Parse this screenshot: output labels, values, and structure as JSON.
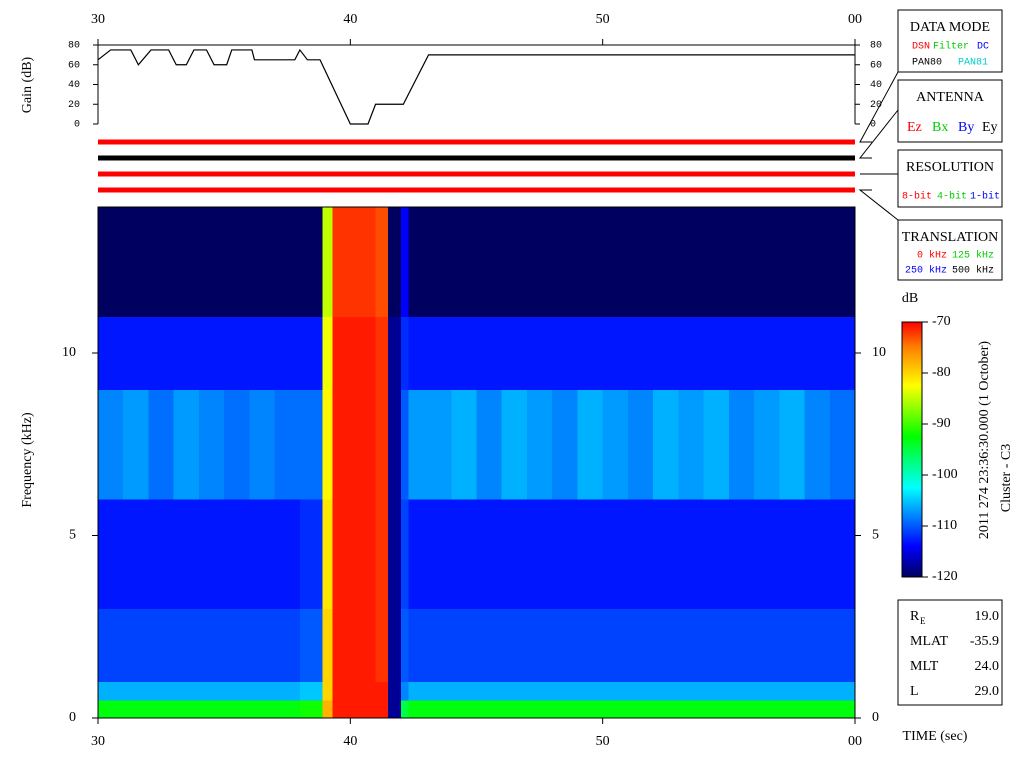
{
  "chart_data": [
    {
      "type": "line",
      "ylabel": "Gain (dB)",
      "x": [
        30,
        30.5,
        31.3,
        31.6,
        32.1,
        32.8,
        33.1,
        33.5,
        33.8,
        34.3,
        34.6,
        35.1,
        35.3,
        36.1,
        36.2,
        37.8,
        38.0,
        38.3,
        38.8,
        40.0,
        40.7,
        41.0,
        42.1,
        43.1,
        60
      ],
      "values": [
        65,
        75,
        75,
        60,
        75,
        75,
        60,
        60,
        75,
        75,
        60,
        60,
        75,
        75,
        65,
        65,
        75,
        65,
        65,
        0,
        0,
        20,
        20,
        70,
        70
      ],
      "color": "#000000",
      "xlim": [
        30,
        60
      ],
      "xticks": [
        30,
        40,
        50,
        {
          "value": 60,
          "label": "00"
        }
      ],
      "ylim": [
        0,
        80
      ],
      "yticks": [
        0,
        20,
        40,
        60,
        80
      ]
    },
    {
      "type": "heatmap",
      "ylabel": "Frequency (kHz)",
      "xlabel": "TIME (sec)",
      "x": [
        30,
        31,
        32,
        33,
        34,
        35,
        36,
        37,
        38,
        38.9,
        39.3,
        40,
        41,
        41.5,
        42,
        42.3,
        43,
        44,
        45,
        46,
        47,
        48,
        49,
        50,
        51,
        52,
        53,
        54,
        55,
        56,
        57,
        58,
        59,
        60
      ],
      "y": [
        0,
        0.5,
        1,
        3,
        6,
        9,
        11,
        14
      ],
      "z": [
        [
          -93,
          -93,
          -93,
          -93,
          -93,
          -93,
          -93,
          -93,
          -92,
          -78,
          -71,
          -71,
          -71,
          -118,
          -95,
          -93,
          -93,
          -93,
          -93,
          -93,
          -93,
          -93,
          -93,
          -93,
          -93,
          -93,
          -93,
          -93,
          -93,
          -93,
          -93,
          -93,
          -93
        ],
        [
          -106,
          -106,
          -106,
          -106,
          -106,
          -106,
          -106,
          -106,
          -105,
          -80,
          -71,
          -71,
          -71,
          -118,
          -108,
          -106,
          -106,
          -106,
          -106,
          -106,
          -106,
          -106,
          -106,
          -106,
          -106,
          -106,
          -106,
          -106,
          -106,
          -106,
          -106,
          -106,
          -106
        ],
        [
          -111,
          -111,
          -111,
          -111,
          -111,
          -111,
          -111,
          -111,
          -110,
          -80,
          -71,
          -71,
          -72,
          -118,
          -110,
          -111,
          -111,
          -111,
          -111,
          -111,
          -111,
          -111,
          -111,
          -111,
          -111,
          -111,
          -111,
          -111,
          -111,
          -111,
          -111,
          -111,
          -111
        ],
        [
          -113,
          -113,
          -113,
          -113,
          -113,
          -113,
          -113,
          -113,
          -112,
          -81,
          -71,
          -71,
          -72,
          -118,
          -111,
          -113,
          -113,
          -113,
          -113,
          -113,
          -113,
          -113,
          -113,
          -113,
          -113,
          -113,
          -113,
          -113,
          -113,
          -113,
          -113,
          -113,
          -113
        ],
        [
          -108,
          -107,
          -109,
          -107,
          -108,
          -109,
          -108,
          -109,
          -109,
          -82,
          -71,
          -71,
          -72,
          -118,
          -110,
          -107,
          -107,
          -106,
          -108,
          -106,
          -107,
          -108,
          -106,
          -107,
          -108,
          -106,
          -107,
          -106,
          -108,
          -107,
          -106,
          -108,
          -109
        ],
        [
          -113,
          -113,
          -113,
          -113,
          -113,
          -113,
          -113,
          -113,
          -113,
          -83,
          -71,
          -71,
          -72,
          -118,
          -112,
          -113,
          -113,
          -113,
          -113,
          -113,
          -113,
          -113,
          -113,
          -113,
          -113,
          -113,
          -113,
          -113,
          -113,
          -113,
          -113,
          -113,
          -113
        ],
        [
          -120,
          -120,
          -120,
          -120,
          -120,
          -120,
          -120,
          -120,
          -120,
          -85,
          -72,
          -72,
          -73,
          -120,
          -114,
          -120,
          -120,
          -120,
          -120,
          -120,
          -120,
          -120,
          -120,
          -120,
          -120,
          -120,
          -120,
          -120,
          -120,
          -120,
          -120,
          -120,
          -120
        ]
      ],
      "xlim": [
        30,
        60
      ],
      "xticks": [
        30,
        40,
        50,
        {
          "value": 60,
          "label": "00"
        }
      ],
      "ylim": [
        0,
        14
      ],
      "yticks": [
        0,
        5,
        10
      ],
      "colorbar": {
        "label": "dB",
        "lim": [
          -120,
          -70
        ],
        "ticks": [
          -70,
          -80,
          -90,
          -100,
          -110,
          -120
        ]
      }
    }
  ],
  "status_lines": [
    "#ff0000",
    "#000000",
    "#ff0000",
    "#ff0000"
  ],
  "panels": [
    {
      "title": "DATA MODE",
      "options": [
        {
          "text": "DSN",
          "color": "#ff0000"
        },
        {
          "text": "Filter",
          "color": "#00cc00"
        },
        {
          "text": "DC",
          "color": "#0000ff"
        },
        {
          "text": "PAN80",
          "color": "#000000"
        },
        {
          "text": "PAN81",
          "color": "#00cccc"
        }
      ]
    },
    {
      "title": "ANTENNA",
      "options": [
        {
          "text": "Ez",
          "color": "#ff0000"
        },
        {
          "text": "Bx",
          "color": "#00cc00"
        },
        {
          "text": "By",
          "color": "#0000ff"
        },
        {
          "text": "Ey",
          "color": "#000000"
        }
      ]
    },
    {
      "title": "RESOLUTION",
      "options": [
        {
          "text": "8-bit",
          "color": "#ff0000"
        },
        {
          "text": "4-bit",
          "color": "#00cc00"
        },
        {
          "text": "1-bit",
          "color": "#0000ff"
        }
      ]
    },
    {
      "title": "TRANSLATION",
      "options": [
        {
          "text": "0 kHz",
          "color": "#ff0000"
        },
        {
          "text": "125 kHz",
          "color": "#00cc00"
        },
        {
          "text": "250 kHz",
          "color": "#0000ff"
        },
        {
          "text": "500 kHz",
          "color": "#000000"
        }
      ]
    }
  ],
  "side_text": [
    "2011 274 23:36:30.000 (1 October)",
    "Cluster - C3"
  ],
  "orbit": [
    {
      "label": "R",
      "sub": "E",
      "value": "19.0"
    },
    {
      "label": "MLAT",
      "value": "-35.9"
    },
    {
      "label": "MLT",
      "value": "24.0"
    },
    {
      "label": "L",
      "value": "29.0"
    }
  ]
}
